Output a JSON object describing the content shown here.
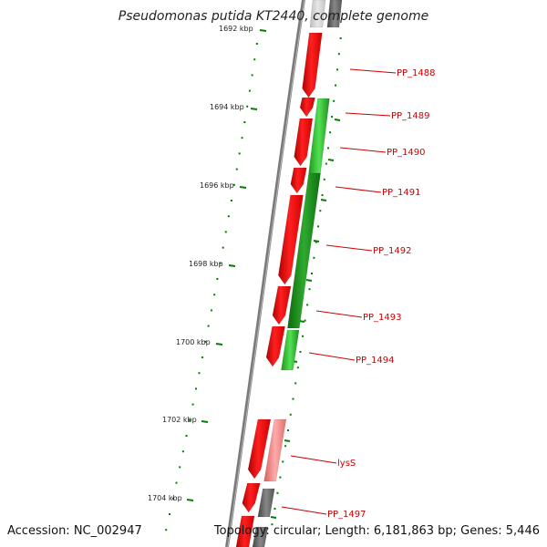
{
  "title": "Pseudomonas putida KT2440, complete genome",
  "footer": {
    "accession": "Accession: NC_002947",
    "summary": "Topology: circular; Length: 6,181,863 bp; Genes: 5,446"
  },
  "scale_labels": [
    "1692 kbp",
    "1694 kbp",
    "1696 kbp",
    "1698 kbp",
    "1700 kbp",
    "1702 kbp",
    "1704 kbp"
  ],
  "gene_labels": [
    "PP_1488",
    "PP_1489",
    "PP_1490",
    "PP_1491",
    "PP_1492",
    "PP_1493",
    "PP_1494",
    "lysS",
    "PP_1497"
  ],
  "colors": {
    "forward_gene": "#ff0000",
    "reverse_gene": "#22cc22",
    "reverse_gene_dark": "#128a12",
    "pseudo_gene": "#f08080",
    "other_feature": "#666666",
    "backbone": "#808080",
    "tick_major": "#008000",
    "label": "#cc0000"
  }
}
